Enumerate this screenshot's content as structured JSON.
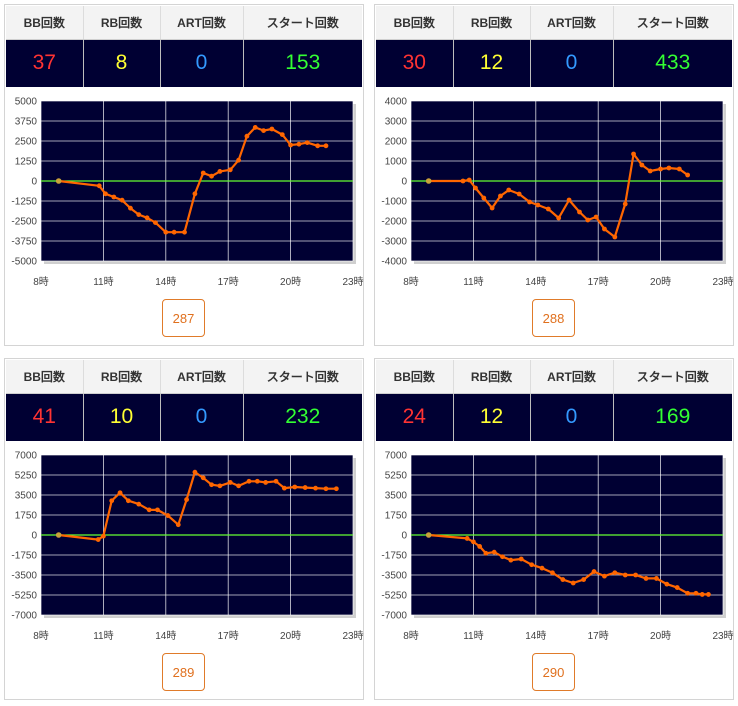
{
  "colors": {
    "bb": "#ff3333",
    "rb": "#ffff33",
    "art": "#3399ff",
    "start": "#33ff33",
    "plot_bg": "#000033",
    "line": "#ff6600",
    "zero_line": "#66ff33",
    "grid": "#ffffff"
  },
  "headers": {
    "bb": "BB回数",
    "rb": "RB回数",
    "art": "ART回数",
    "start": "スタート回数"
  },
  "panels": [
    {
      "stats": {
        "bb": "37",
        "rb": "8",
        "art": "0",
        "start": "153"
      },
      "machine": "287",
      "chart_data": {
        "type": "line",
        "x_ticks": [
          8,
          11,
          14,
          17,
          20,
          23
        ],
        "x_tick_labels": [
          "8時",
          "11時",
          "14時",
          "17時",
          "20時",
          "23時"
        ],
        "xlim": [
          8,
          23
        ],
        "ylim": [
          -5000,
          5000
        ],
        "y_ticks": [
          5000,
          3750,
          2500,
          1250,
          0,
          -1250,
          -2500,
          -3750,
          -5000
        ],
        "y_tick_labels": [
          "5000",
          "3750",
          "2500",
          "1250",
          "0",
          "-1250",
          "-2500",
          "-3750",
          "-5000"
        ],
        "grid": true,
        "x": [
          8.85,
          10.8,
          11.1,
          11.5,
          11.9,
          12.3,
          12.7,
          13.1,
          13.5,
          14.0,
          14.4,
          14.9,
          15.4,
          15.8,
          16.2,
          16.6,
          17.1,
          17.5,
          17.9,
          18.3,
          18.7,
          19.1,
          19.6,
          20.0,
          20.4,
          20.8,
          21.3,
          21.7
        ],
        "y": [
          0,
          -300,
          -800,
          -1000,
          -1200,
          -1700,
          -2100,
          -2300,
          -2600,
          -3200,
          -3200,
          -3200,
          -800,
          500,
          300,
          600,
          700,
          1300,
          2800,
          3350,
          3150,
          3250,
          2900,
          2250,
          2300,
          2400,
          2200,
          2200
        ]
      }
    },
    {
      "stats": {
        "bb": "30",
        "rb": "12",
        "art": "0",
        "start": "433"
      },
      "machine": "288",
      "chart_data": {
        "type": "line",
        "x_ticks": [
          8,
          11,
          14,
          17,
          20,
          23
        ],
        "x_tick_labels": [
          "8時",
          "11時",
          "14時",
          "17時",
          "20時",
          "23時"
        ],
        "xlim": [
          8,
          23
        ],
        "ylim": [
          -4000,
          4000
        ],
        "y_ticks": [
          4000,
          3000,
          2000,
          1000,
          0,
          -1000,
          -2000,
          -3000,
          -4000
        ],
        "y_tick_labels": [
          "4000",
          "3000",
          "2000",
          "1000",
          "0",
          "-1000",
          "-2000",
          "-3000",
          "-4000"
        ],
        "grid": true,
        "x": [
          8.85,
          10.5,
          10.8,
          11.1,
          11.5,
          11.9,
          12.3,
          12.7,
          13.2,
          13.7,
          14.1,
          14.6,
          15.1,
          15.6,
          16.1,
          16.5,
          16.9,
          17.3,
          17.8,
          18.3,
          18.7,
          19.1,
          19.5,
          20.0,
          20.4,
          20.9,
          21.3
        ],
        "y": [
          0,
          0,
          50,
          -350,
          -850,
          -1350,
          -750,
          -450,
          -650,
          -1050,
          -1200,
          -1400,
          -1850,
          -950,
          -1550,
          -1950,
          -1800,
          -2400,
          -2800,
          -1150,
          1350,
          800,
          500,
          600,
          650,
          600,
          300
        ]
      }
    },
    {
      "stats": {
        "bb": "41",
        "rb": "10",
        "art": "0",
        "start": "232"
      },
      "machine": "289",
      "chart_data": {
        "type": "line",
        "x_ticks": [
          8,
          11,
          14,
          17,
          20,
          23
        ],
        "x_tick_labels": [
          "8時",
          "11時",
          "14時",
          "17時",
          "20時",
          "23時"
        ],
        "xlim": [
          8,
          23
        ],
        "ylim": [
          -7000,
          7000
        ],
        "y_ticks": [
          7000,
          5250,
          3500,
          1750,
          0,
          -1750,
          -3500,
          -5250,
          -7000
        ],
        "y_tick_labels": [
          "7000",
          "5250",
          "3500",
          "1750",
          "0",
          "-1750",
          "-3500",
          "-5250",
          "-7000"
        ],
        "grid": true,
        "x": [
          8.85,
          10.75,
          11.0,
          11.4,
          11.8,
          12.2,
          12.7,
          13.2,
          13.6,
          14.1,
          14.6,
          15.0,
          15.4,
          15.8,
          16.2,
          16.6,
          17.1,
          17.5,
          18.0,
          18.4,
          18.8,
          19.3,
          19.7,
          20.2,
          20.7,
          21.2,
          21.7,
          22.2
        ],
        "y": [
          0,
          -400,
          -100,
          3000,
          3700,
          3000,
          2700,
          2200,
          2200,
          1700,
          900,
          3100,
          5500,
          5000,
          4400,
          4300,
          4600,
          4300,
          4700,
          4700,
          4600,
          4700,
          4100,
          4200,
          4150,
          4100,
          4050,
          4050
        ]
      }
    },
    {
      "stats": {
        "bb": "24",
        "rb": "12",
        "art": "0",
        "start": "169"
      },
      "machine": "290",
      "chart_data": {
        "type": "line",
        "x_ticks": [
          8,
          11,
          14,
          17,
          20,
          23
        ],
        "x_tick_labels": [
          "8時",
          "11時",
          "14時",
          "17時",
          "20時",
          "23時"
        ],
        "xlim": [
          8,
          23
        ],
        "ylim": [
          -7000,
          7000
        ],
        "y_ticks": [
          7000,
          5250,
          3500,
          1750,
          0,
          -1750,
          -3500,
          -5250,
          -7000
        ],
        "y_tick_labels": [
          "7000",
          "5250",
          "3500",
          "1750",
          "0",
          "-1750",
          "-3500",
          "-5250",
          "-7000"
        ],
        "grid": true,
        "x": [
          8.85,
          10.7,
          11.0,
          11.3,
          11.6,
          12.0,
          12.4,
          12.8,
          13.3,
          13.8,
          14.3,
          14.8,
          15.3,
          15.8,
          16.3,
          16.8,
          17.3,
          17.8,
          18.3,
          18.8,
          19.3,
          19.8,
          20.3,
          20.8,
          21.3,
          21.7,
          22.0,
          22.3
        ],
        "y": [
          0,
          -300,
          -600,
          -1000,
          -1600,
          -1500,
          -1900,
          -2200,
          -2100,
          -2600,
          -2900,
          -3300,
          -3900,
          -4200,
          -3900,
          -3200,
          -3600,
          -3300,
          -3500,
          -3500,
          -3800,
          -3800,
          -4300,
          -4600,
          -5100,
          -5100,
          -5200,
          -5200
        ]
      }
    }
  ]
}
